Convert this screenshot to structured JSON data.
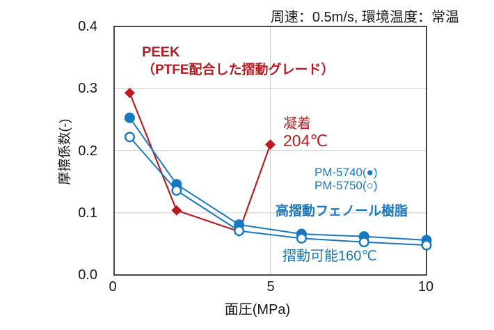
{
  "condition_note": "周速：0.5m/s, 環境温度：常温",
  "colors": {
    "red": "#b71c22",
    "blue": "#1878be",
    "grid": "#cccccc",
    "axis": "#1a1a1a",
    "background": "#ffffff"
  },
  "chart_data": {
    "type": "line",
    "title": "",
    "xlabel": "面圧(MPa)",
    "ylabel": "摩擦係数(-)",
    "xlim": [
      0,
      10
    ],
    "ylim": [
      0,
      0.4
    ],
    "x_tick_values": [
      0,
      5,
      10
    ],
    "x_tick_labels": [
      "0",
      "5",
      "10"
    ],
    "y_tick_values": [
      0.4,
      0.3,
      0.2,
      0.1,
      0.0
    ],
    "y_tick_labels": [
      "0.4",
      "0.3",
      "0.2",
      "0.1",
      "0.0"
    ],
    "grid_x_values": [
      5
    ],
    "grid_y_values": [
      0.1,
      0.2,
      0.3
    ],
    "legend_position": "inline-annotations",
    "series": [
      {
        "name": "PEEK（PTFE配合した摺動グレード）",
        "marker": "diamond",
        "color": "#b71c22",
        "points": [
          [
            0.5,
            0.293
          ],
          [
            2,
            0.104
          ],
          [
            4,
            0.07
          ],
          [
            5,
            0.21
          ]
        ]
      },
      {
        "name": "PM-5740",
        "marker": "filled-circle",
        "color": "#1878be",
        "points": [
          [
            0.5,
            0.253
          ],
          [
            2,
            0.146
          ],
          [
            4,
            0.081
          ],
          [
            6,
            0.066
          ],
          [
            8,
            0.062
          ],
          [
            10,
            0.056
          ]
        ]
      },
      {
        "name": "PM-5750",
        "marker": "open-circle",
        "color": "#1878be",
        "points": [
          [
            0.5,
            0.222
          ],
          [
            2,
            0.136
          ],
          [
            4,
            0.071
          ],
          [
            6,
            0.059
          ],
          [
            8,
            0.053
          ],
          [
            10,
            0.048
          ]
        ]
      }
    ],
    "annotations": {
      "peek_title": "PEEK",
      "peek_subtitle": "（PTFE配合した摺動グレード）",
      "adhesion": "凝着",
      "adhesion_temp": "204℃",
      "pm5740": "PM-5740(●)",
      "pm5750": "PM-5750(○)",
      "phenol": "高摺動フェノール樹脂",
      "usable": "摺動可能160℃"
    }
  }
}
